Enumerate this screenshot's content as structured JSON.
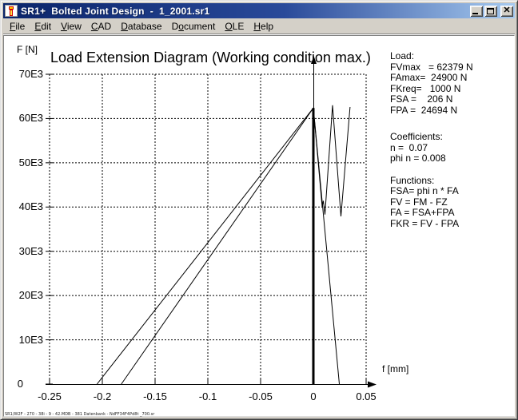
{
  "window": {
    "title": "SR1+  Bolted Joint Design  -  1_2001.sr1",
    "buttons": [
      {
        "name": "minimize"
      },
      {
        "name": "maximize"
      },
      {
        "name": "close"
      }
    ]
  },
  "menu": {
    "items": [
      {
        "label": "File",
        "underline": 0
      },
      {
        "label": "Edit",
        "underline": 0
      },
      {
        "label": "View",
        "underline": 0
      },
      {
        "label": "CAD",
        "underline": 0
      },
      {
        "label": "Database",
        "underline": 0
      },
      {
        "label": "Document",
        "underline": 1
      },
      {
        "label": "OLE",
        "underline": 0
      },
      {
        "label": "Help",
        "underline": 0
      }
    ]
  },
  "chart_data": {
    "type": "line",
    "title": "Load Extension Diagram (Working condition max.)",
    "xlabel": "f [mm]",
    "ylabel": "F [N]",
    "xlim": [
      -0.25,
      0.05
    ],
    "ylim": [
      0,
      70000
    ],
    "grid": true,
    "x_ticks": [
      {
        "label": "-0.25",
        "value": -0.25
      },
      {
        "label": "-0.2",
        "value": -0.2
      },
      {
        "label": "-0.15",
        "value": -0.15
      },
      {
        "label": "-0.1",
        "value": -0.1
      },
      {
        "label": "-0.05",
        "value": -0.05
      },
      {
        "label": "0",
        "value": 0
      },
      {
        "label": "0.05",
        "value": 0.05
      }
    ],
    "y_ticks": [
      {
        "label": "70E3",
        "value": 70000
      },
      {
        "label": "60E3",
        "value": 60000
      },
      {
        "label": "50E3",
        "value": 50000
      },
      {
        "label": "40E3",
        "value": 40000
      },
      {
        "label": "30E3",
        "value": 30000
      },
      {
        "label": "20E3",
        "value": 20000
      },
      {
        "label": "10E3",
        "value": 10000
      },
      {
        "label": "0",
        "value": 0
      }
    ],
    "series": [
      {
        "name": "bolt-line-loading",
        "width": 1,
        "points": [
          [
            -0.205,
            0
          ],
          [
            0,
            62379
          ]
        ]
      },
      {
        "name": "bolt-line-after-embedding",
        "width": 1,
        "points": [
          [
            -0.182,
            0
          ],
          [
            0,
            62379
          ]
        ]
      },
      {
        "name": "preload-vertical",
        "width": 3,
        "points": [
          [
            0,
            0
          ],
          [
            0,
            62379
          ]
        ]
      },
      {
        "name": "clamped-parts-line",
        "width": 1,
        "points": [
          [
            0,
            62379
          ],
          [
            0.0246,
            0
          ]
        ]
      },
      {
        "name": "working-load-oscillation",
        "width": 1,
        "points": [
          [
            0,
            62379
          ],
          [
            0.0083,
            40100
          ],
          [
            0.0095,
            41400
          ],
          [
            0.011,
            38300
          ],
          [
            0.0182,
            63000
          ],
          [
            0.0261,
            37900
          ],
          [
            0.0348,
            62600
          ]
        ]
      }
    ]
  },
  "panel": {
    "load": [
      "Load:",
      "FVmax   = 62379 N",
      "FAmax=  24900 N",
      "FKreq=   1000 N",
      "FSA =    206 N",
      "FPA =  24694 N"
    ],
    "coefficients": [
      "Coefficients:",
      "n =  0.07",
      "phi n = 0.008"
    ],
    "functions": [
      "Functions:",
      "FSA= phi n * FA",
      "FV = FM - FZ",
      "FA = FSA+FPA",
      "FKR = FV - FPA"
    ]
  },
  "status_bar": {
    "text": "SR1/W2F - 270 - 38i - 9 - 42.MDB - 381 Datenbank - NdFF34F4Pd8t _700.sr"
  },
  "colors": {
    "titlebar_left": "#0a246a",
    "titlebar_right": "#a6caf0",
    "chrome": "#d4d0c8",
    "plot_line": "#000000",
    "client_bg": "#ffffff"
  }
}
